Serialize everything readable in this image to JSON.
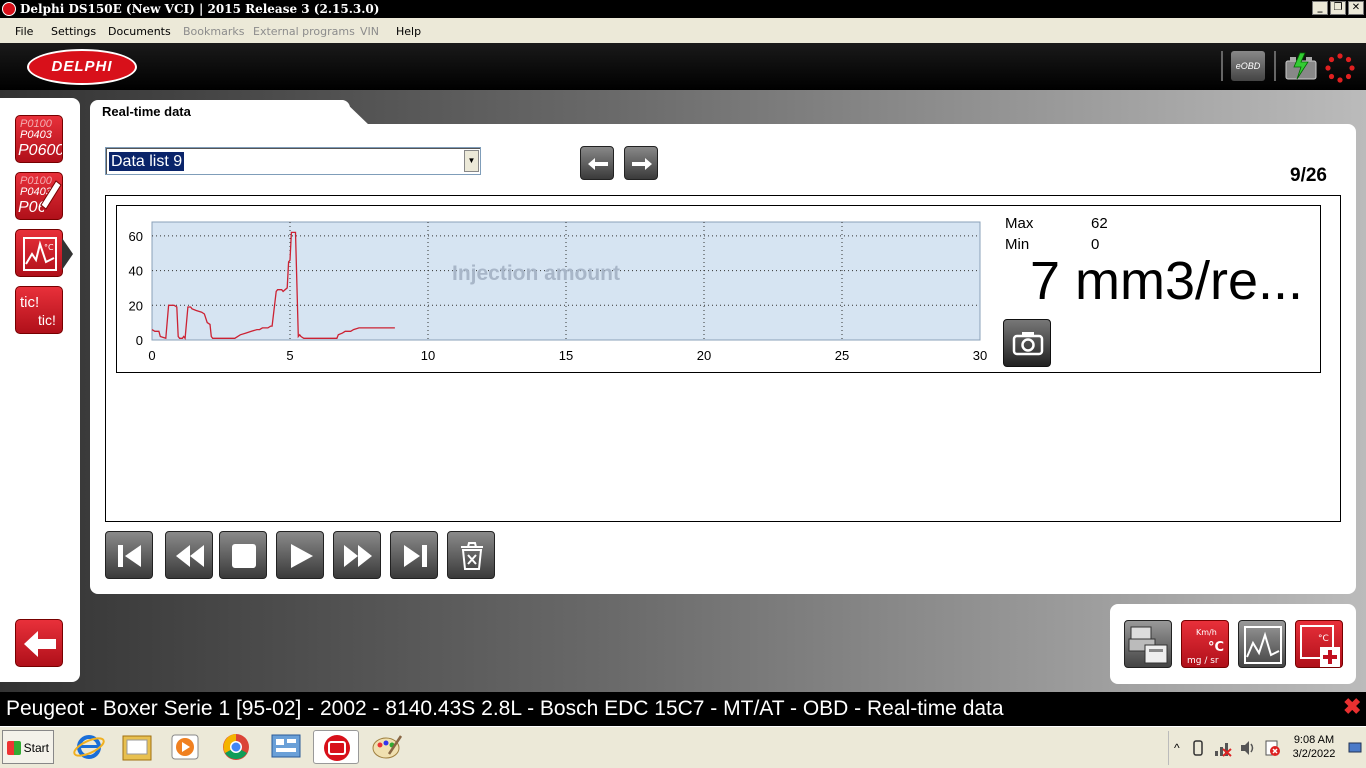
{
  "window": {
    "title": "Delphi DS150E (New VCI) | 2015 Release 3 (2.15.3.0)"
  },
  "menu": {
    "items": [
      {
        "label": "File",
        "enabled": true
      },
      {
        "label": "Settings",
        "enabled": true
      },
      {
        "label": "Documents",
        "enabled": true
      },
      {
        "label": "Bookmarks",
        "enabled": false
      },
      {
        "label": "External programs",
        "enabled": false
      },
      {
        "label": "VIN",
        "enabled": false
      },
      {
        "label": "Help",
        "enabled": true
      }
    ]
  },
  "header": {
    "logo_text": "DELPHI",
    "eobd_label": "eOBD"
  },
  "sidebar": {
    "btn_dtc": {
      "lines": [
        "P0100",
        "P0403",
        "P0600"
      ]
    },
    "btn_dtc_edit": {
      "lines": [
        "P0100",
        "P0403",
        "P0600"
      ]
    },
    "btn_rtd": {
      "icon": "realtime-data-icon"
    },
    "btn_tic": {
      "lines": [
        "tic!",
        "tic!"
      ]
    }
  },
  "tab": {
    "label": "Real-time data"
  },
  "select": {
    "value": "Data list 9"
  },
  "pager": {
    "text": "9/26"
  },
  "stats": {
    "max_label": "Max",
    "max_value": "62",
    "min_label": "Min",
    "min_value": "0"
  },
  "big_value": "7 mm3/re...",
  "chart_data": {
    "type": "line",
    "title": "Injection amount",
    "xlabel": "",
    "ylabel": "",
    "xlim": [
      0,
      30
    ],
    "ylim": [
      0,
      68
    ],
    "x_ticks": [
      0,
      5,
      10,
      15,
      20,
      25,
      30
    ],
    "y_ticks": [
      0,
      20,
      40,
      60
    ],
    "grid": true,
    "line_color": "#cc2233",
    "bg_color": "#d6e4f2",
    "series": [
      {
        "x": [
          0,
          0.1,
          0.25,
          0.3,
          0.5,
          0.6,
          0.8,
          0.9,
          0.95,
          1.0,
          1.1,
          1.15,
          1.2,
          1.3,
          1.4,
          1.45,
          1.6,
          1.8,
          1.9,
          2.0,
          2.1,
          2.15,
          2.2,
          2.5,
          2.8,
          3.0,
          3.2,
          3.4,
          3.6,
          3.8,
          3.9,
          4.0,
          4.2,
          4.3,
          4.35,
          4.5,
          4.55,
          4.7,
          4.75,
          4.9,
          4.95,
          5.0,
          5.05,
          5.2,
          5.3,
          5.35,
          5.4,
          5.5,
          5.7,
          6.0,
          6.3,
          6.5,
          6.7,
          6.75,
          6.9,
          7.0,
          7.2,
          7.3,
          7.5,
          7.8,
          8.0,
          8.3,
          8.6,
          8.8
        ],
        "y": [
          6,
          5,
          5,
          2,
          1,
          20,
          20,
          19,
          2,
          1,
          1,
          2,
          1,
          19,
          19,
          18,
          17,
          16,
          15,
          10,
          9,
          2,
          1,
          1,
          1,
          1,
          3,
          4,
          5,
          6,
          6,
          7,
          7,
          8,
          8,
          28,
          29,
          29,
          28,
          30,
          45,
          46,
          62,
          62,
          2,
          3,
          2,
          1,
          1,
          1,
          1,
          1,
          1,
          3,
          4,
          5,
          5,
          6,
          7,
          7,
          7,
          7,
          7,
          7
        ]
      }
    ]
  },
  "player": {
    "buttons": [
      "skip-start",
      "rewind",
      "stop",
      "play",
      "fast-forward",
      "skip-end",
      "clear"
    ]
  },
  "status": {
    "vehicle_text": "Peugeot - Boxer Serie 1 [95-02] - 2002 - 8140.43S 2.8L - Bosch EDC 15C7 - MT/AT - OBD - Real-time data"
  },
  "taskbar": {
    "start_label": "Start",
    "time": "9:08 AM",
    "date": "3/2/2022"
  },
  "colors": {
    "accent_red": "#d8101a",
    "chart_bg": "#d6e4f2"
  }
}
